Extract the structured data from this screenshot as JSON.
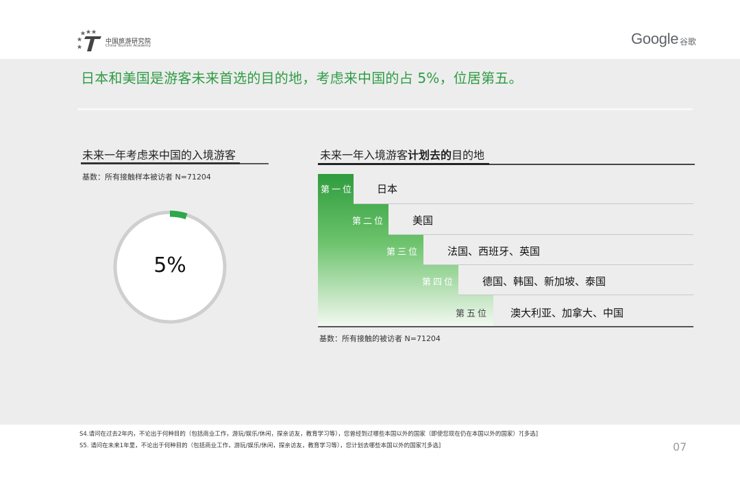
{
  "header": {
    "org_name_cn": "中国旅游研究院",
    "org_name_en": "China Tourism Academy",
    "partner_logo": "Google",
    "partner_cn": "谷歌"
  },
  "headline": "日本和美国是游客未来首选的目的地，考虑来中国的占 5%，位居第五。",
  "left": {
    "title": "未来一年考虑来中国的入境游客",
    "base": "基数：所有接触样本被访者 N=71204",
    "value_label": "5%",
    "value_fraction": 0.05,
    "accent_color": "#2ea84a"
  },
  "right": {
    "title_pre": "未来一年入境游客",
    "title_bold": "计划去的",
    "title_post": "目的地",
    "base": "基数：所有接触的被访者 N=71204",
    "ranks": [
      {
        "label": "第一位",
        "dest": "日本"
      },
      {
        "label": "第二位",
        "dest": "美国"
      },
      {
        "label": "第三位",
        "dest": "法国、西班牙、英国"
      },
      {
        "label": "第四位",
        "dest": "德国、韩国、新加坡、泰国"
      },
      {
        "label": "第五位",
        "dest": "澳大利亚、加拿大、中国"
      }
    ]
  },
  "footnotes": [
    "S4.请问在过去2年内，不论出于何种目的（包括商业工作，游玩/娱乐/休闲，探亲访友，教育学习等），您曾经到过哪些本国以外的国家（即使您现在仍在本国以外的国家）?[多选]",
    "S5. 请问在未来1年里，不论出于何种目的（包括商业工作，游玩/娱乐/休闲，探亲访友，教育学习等），您计划去哪些本国以外的国家?[多选]"
  ],
  "page_number": "07"
}
